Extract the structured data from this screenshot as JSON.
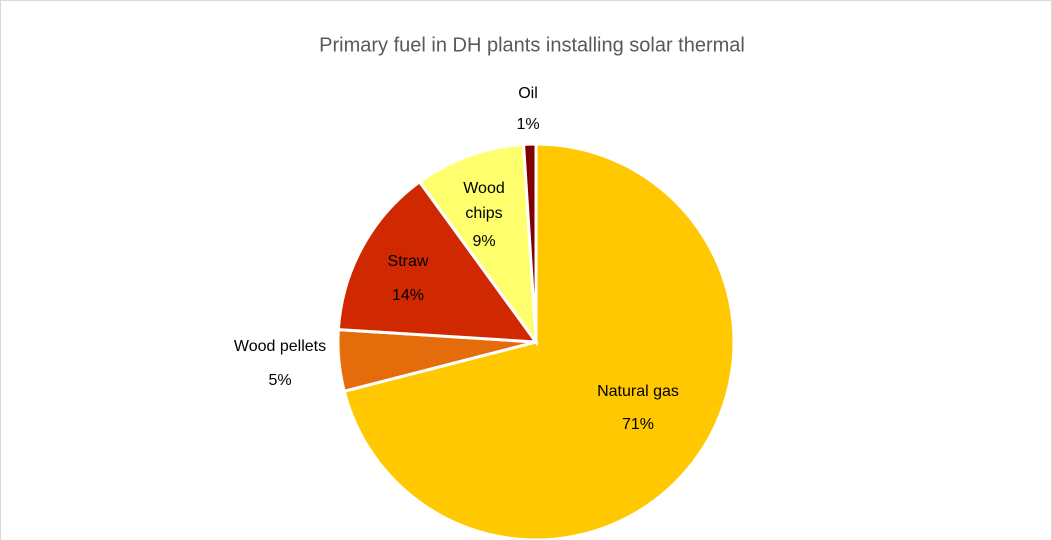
{
  "chart_data": {
    "type": "pie",
    "title": "Primary fuel in DH plants installing solar thermal",
    "categories": [
      "Natural gas",
      "Wood pellets",
      "Straw",
      "Wood chips",
      "Oil"
    ],
    "values": [
      71,
      5,
      14,
      9,
      1
    ],
    "value_labels": [
      "71%",
      "5%",
      "14%",
      "9%",
      "1%"
    ],
    "colors": [
      "#FFC800",
      "#E46C0A",
      "#D02800",
      "#FFFF6E",
      "#7F0000"
    ]
  }
}
